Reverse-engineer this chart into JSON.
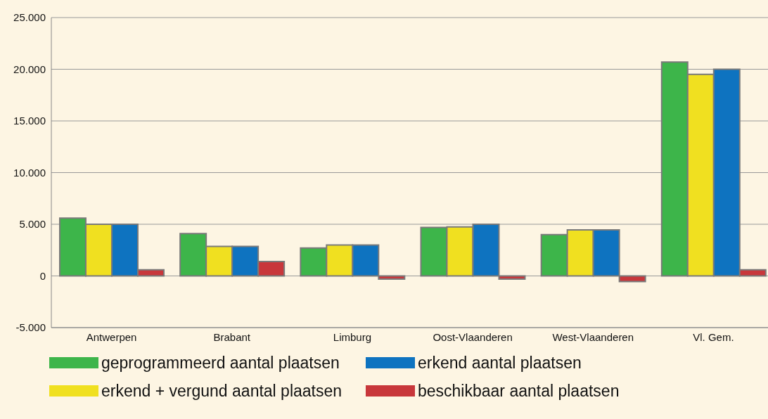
{
  "chart_data": {
    "type": "bar",
    "categories": [
      "Antwerpen",
      "Brabant",
      "Limburg",
      "Oost-Vlaanderen",
      "West-Vlaanderen",
      "Vl. Gem."
    ],
    "series": [
      {
        "name": "geprogrammeerd aantal plaatsen",
        "color": "#3db54a",
        "values": [
          5600,
          4100,
          2700,
          4700,
          4000,
          20700
        ]
      },
      {
        "name": "erkend + vergund aantal plaatsen",
        "color": "#f0e020",
        "values": [
          5000,
          2850,
          3000,
          4750,
          4450,
          19500
        ]
      },
      {
        "name": "erkend aantal plaatsen",
        "color": "#0e73c0",
        "values": [
          5000,
          2850,
          3000,
          5000,
          4450,
          20000
        ]
      },
      {
        "name": "beschikbaar aantal plaatsen",
        "color": "#c8373b",
        "values": [
          600,
          1400,
          -300,
          -300,
          -550,
          600
        ]
      }
    ],
    "ylim": [
      -5000,
      25000
    ],
    "yticks": [
      {
        "value": -5000,
        "label": "-5.000"
      },
      0,
      {
        "value": 5000,
        "label": "5.000"
      },
      {
        "value": 10000,
        "label": "10.000"
      },
      {
        "value": 15000,
        "label": "15.000"
      },
      {
        "value": 20000,
        "label": "20.000"
      },
      {
        "value": 25000,
        "label": "25.000"
      }
    ],
    "grid": "y",
    "legend": "bottom"
  }
}
